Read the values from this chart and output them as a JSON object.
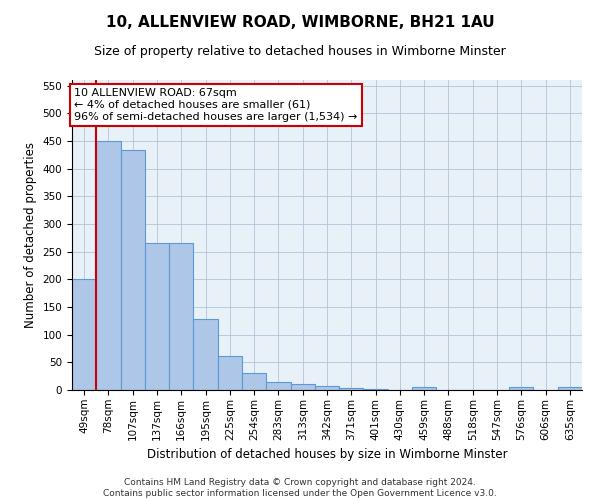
{
  "title": "10, ALLENVIEW ROAD, WIMBORNE, BH21 1AU",
  "subtitle": "Size of property relative to detached houses in Wimborne Minster",
  "xlabel": "Distribution of detached houses by size in Wimborne Minster",
  "ylabel": "Number of detached properties",
  "bar_labels": [
    "49sqm",
    "78sqm",
    "107sqm",
    "137sqm",
    "166sqm",
    "195sqm",
    "225sqm",
    "254sqm",
    "283sqm",
    "313sqm",
    "342sqm",
    "371sqm",
    "401sqm",
    "430sqm",
    "459sqm",
    "488sqm",
    "518sqm",
    "547sqm",
    "576sqm",
    "606sqm",
    "635sqm"
  ],
  "bar_values": [
    200,
    450,
    433,
    265,
    265,
    128,
    62,
    30,
    15,
    11,
    8,
    4,
    2,
    0,
    6,
    0,
    0,
    0,
    5,
    0,
    5
  ],
  "bar_color": "#aec6e8",
  "bar_edge_color": "#5b9bd5",
  "annotation_text": "10 ALLENVIEW ROAD: 67sqm\n← 4% of detached houses are smaller (61)\n96% of semi-detached houses are larger (1,534) →",
  "annotation_box_color": "#ffffff",
  "annotation_box_edge": "#cc0000",
  "vline_color": "#cc0000",
  "ylim": [
    0,
    560
  ],
  "yticks": [
    0,
    50,
    100,
    150,
    200,
    250,
    300,
    350,
    400,
    450,
    500,
    550
  ],
  "background_color": "#e8f0f8",
  "footnote": "Contains HM Land Registry data © Crown copyright and database right 2024.\nContains public sector information licensed under the Open Government Licence v3.0.",
  "title_fontsize": 11,
  "subtitle_fontsize": 9,
  "xlabel_fontsize": 8.5,
  "ylabel_fontsize": 8.5,
  "tick_fontsize": 7.5,
  "annotation_fontsize": 8,
  "footnote_fontsize": 6.5
}
